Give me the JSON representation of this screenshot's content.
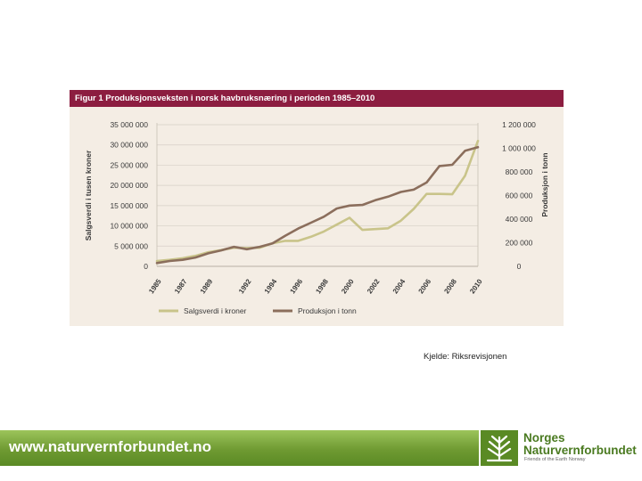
{
  "chart_data": {
    "type": "line",
    "title": "Figur 1 Produksjonsveksten i norsk havbruksnæring i perioden 1985–2010",
    "ylabel_left": "Salgsverdi i tusen kroner",
    "ylabel_right": "Produksjon i tonn",
    "y_left_ticks": [
      "35 000 000",
      "30 000 000",
      "25 000 000",
      "20 000 000",
      "15 000 000",
      "10 000 000",
      "5 000 000",
      "0"
    ],
    "y_right_ticks": [
      "1 200 000",
      "1 000 000",
      "800 000",
      "600 000",
      "400 000",
      "200 000",
      "0"
    ],
    "x_ticks": [
      "1985",
      "1987",
      "1989",
      "1992",
      "1994",
      "1996",
      "1998",
      "2000",
      "2002",
      "2004",
      "2006",
      "2008",
      "2010"
    ],
    "ylim_left": [
      0,
      35000000
    ],
    "ylim_right": [
      0,
      1200000
    ],
    "xlim": [
      1985,
      2010
    ],
    "grid": true,
    "legend_position": "bottom",
    "series": [
      {
        "name": "Salgsverdi i kroner",
        "color": "#c9c48a",
        "axis": "left",
        "x": [
          1985,
          1986,
          1987,
          1988,
          1989,
          1990,
          1991,
          1992,
          1993,
          1994,
          1995,
          1996,
          1997,
          1998,
          1999,
          2000,
          2001,
          2002,
          2003,
          2004,
          2005,
          2006,
          2007,
          2008,
          2009,
          2010
        ],
        "values": [
          1300000,
          1600000,
          2000000,
          2600000,
          3500000,
          4000000,
          4600000,
          4500000,
          4600000,
          5700000,
          6300000,
          6300000,
          7300000,
          8600000,
          10300000,
          12000000,
          9000000,
          9200000,
          9400000,
          11300000,
          14200000,
          17900000,
          17900000,
          17800000,
          22400000,
          31000000
        ]
      },
      {
        "name": "Produksjon i tonn",
        "color": "#8b6e5c",
        "axis": "right",
        "x": [
          1985,
          1986,
          1987,
          1988,
          1989,
          1990,
          1991,
          1992,
          1993,
          1994,
          1995,
          1996,
          1997,
          1998,
          1999,
          2000,
          2001,
          2002,
          2003,
          2004,
          2005,
          2006,
          2007,
          2008,
          2009,
          2010
        ],
        "values": [
          28000,
          45000,
          55000,
          75000,
          110000,
          135000,
          165000,
          145000,
          165000,
          195000,
          260000,
          320000,
          370000,
          420000,
          490000,
          515000,
          520000,
          560000,
          590000,
          630000,
          650000,
          710000,
          850000,
          860000,
          980000,
          1010000
        ]
      }
    ]
  },
  "source_text": "Kjelde: Riksrevisjonen",
  "footer": {
    "url": "www.naturvernforbundet.no",
    "org_line1": "Norges",
    "org_line2": "Naturvernforbundet",
    "org_sub": "Friends of the Earth Norway"
  }
}
